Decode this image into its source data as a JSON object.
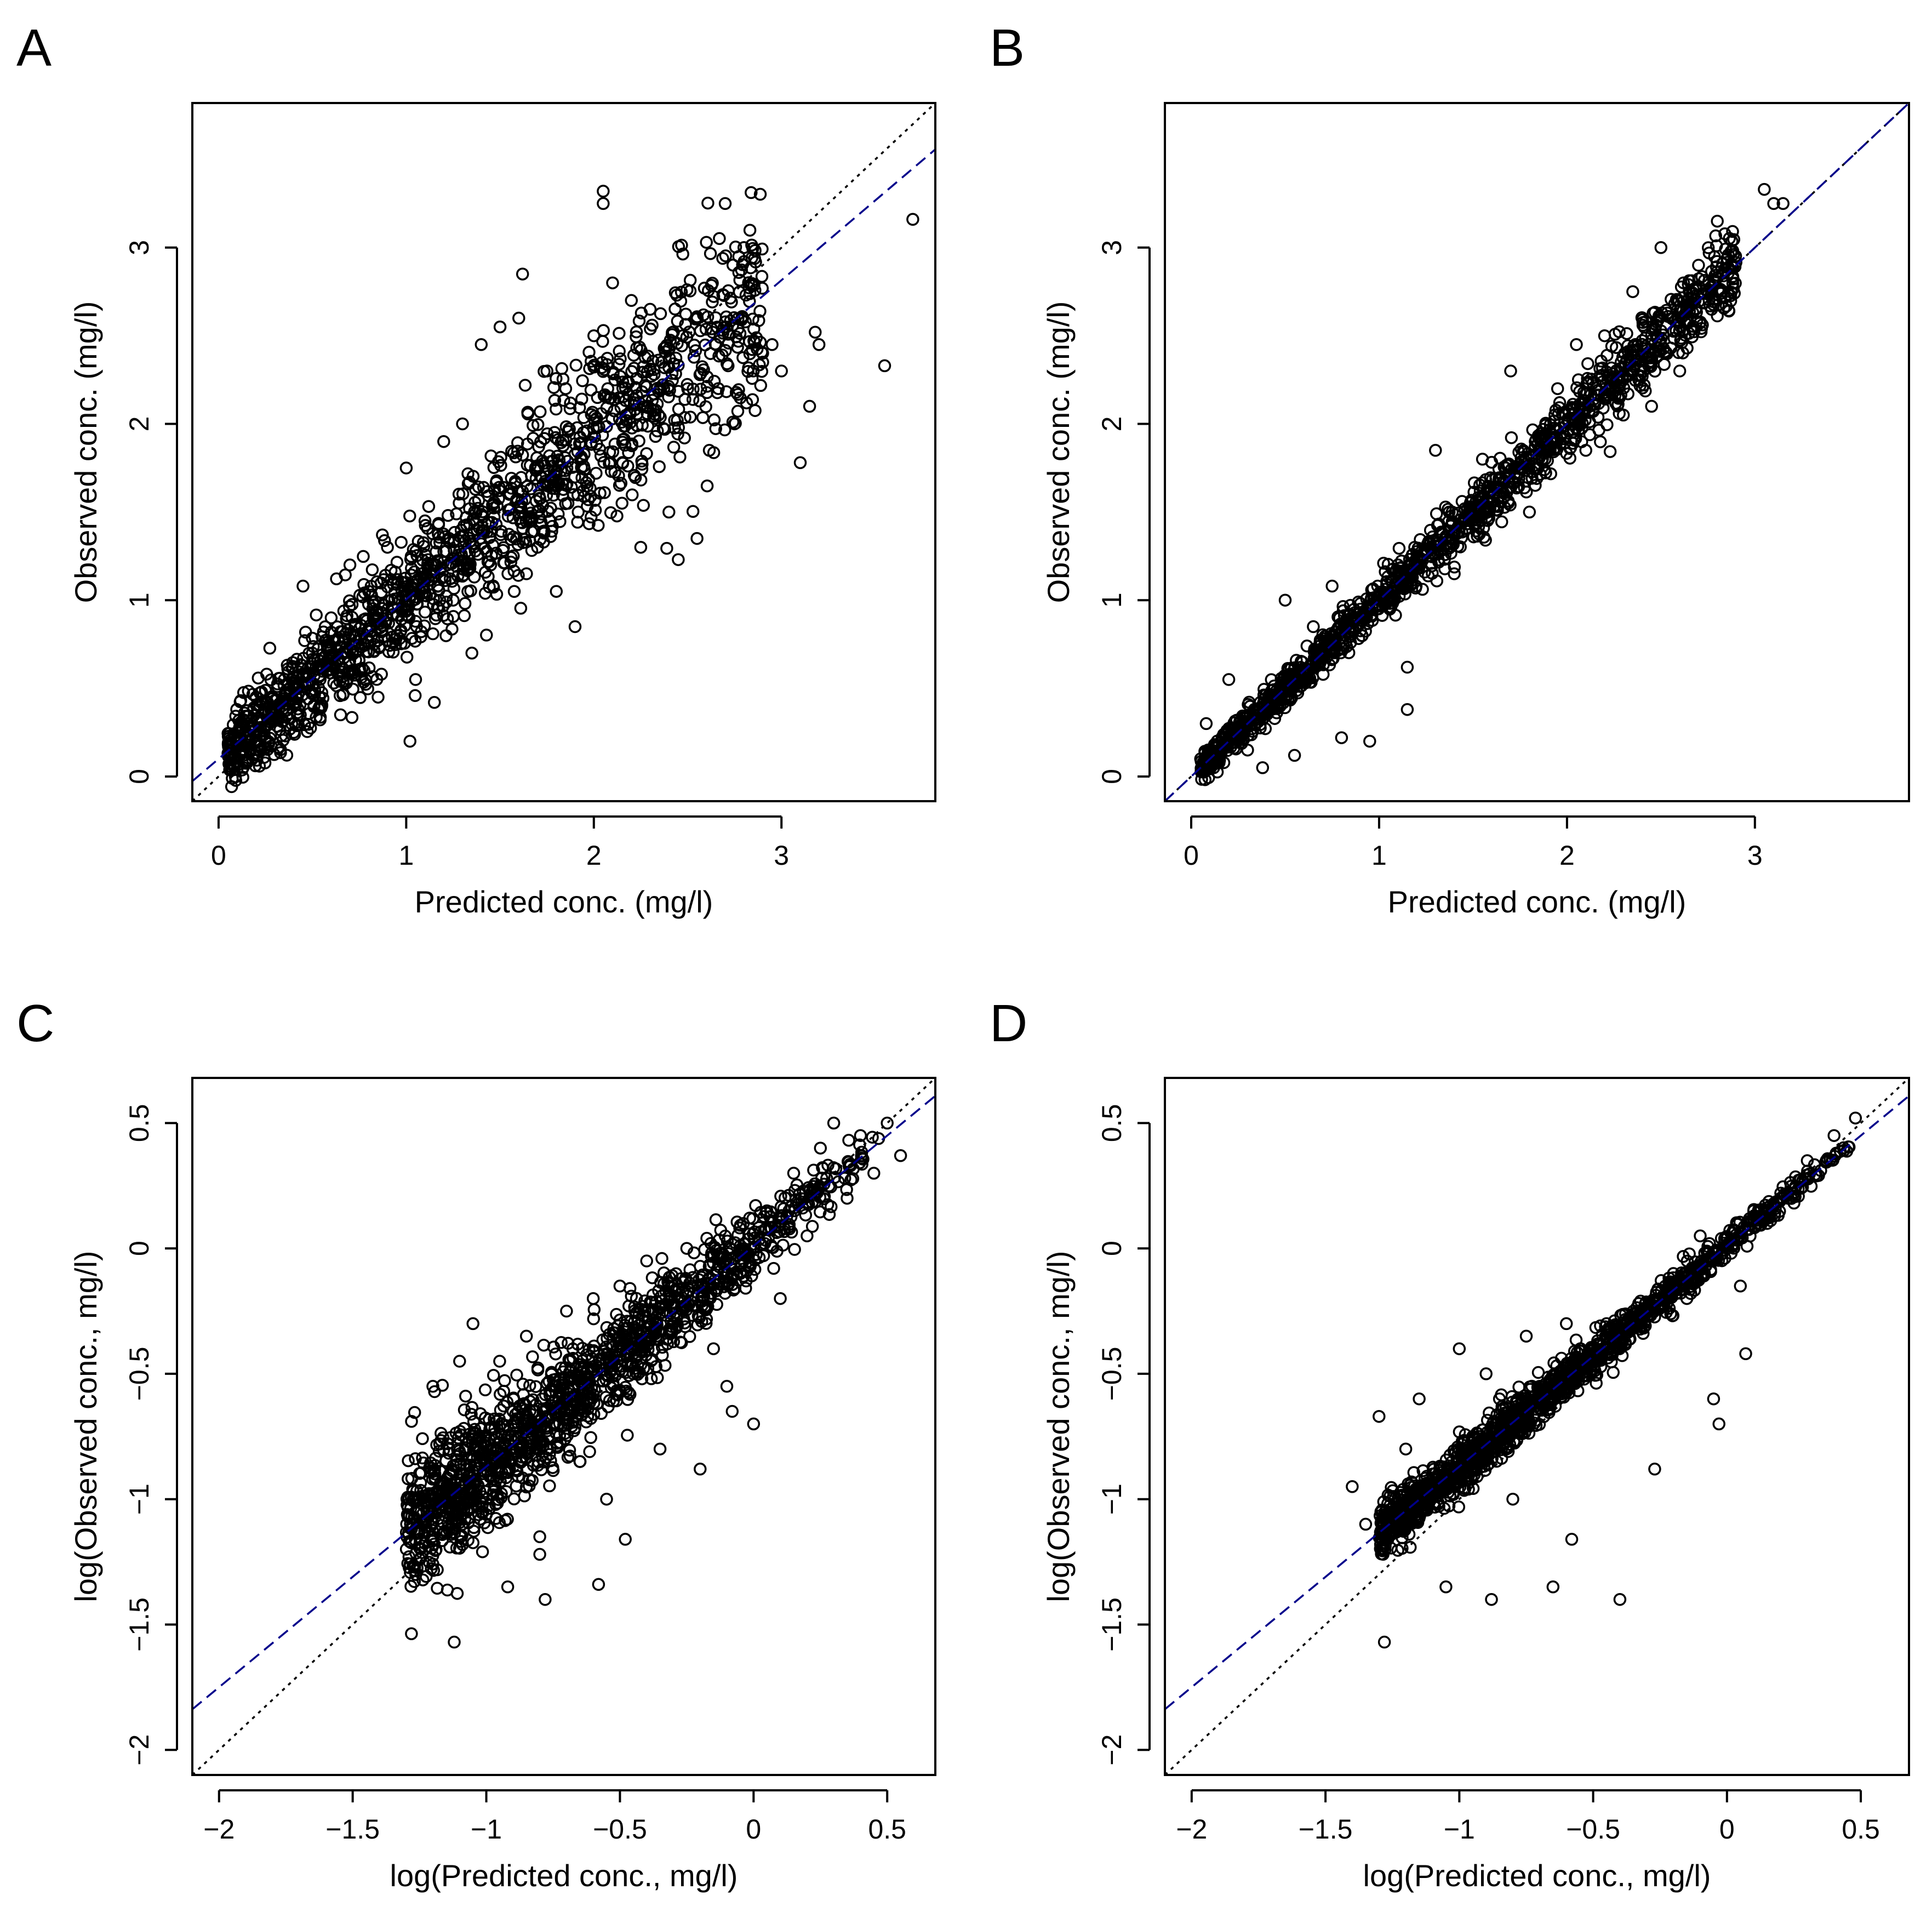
{
  "chart_data": [
    {
      "panel": "A",
      "type": "scatter",
      "xlabel": "Predicted conc. (mg/l)",
      "ylabel": "Observed conc. (mg/l)",
      "xlim": [
        -0.14,
        3.82
      ],
      "ylim": [
        -0.14,
        3.82
      ],
      "xticks": [
        0,
        1,
        2,
        3
      ],
      "yticks": [
        0,
        1,
        2,
        3
      ],
      "tick_labels": [
        "0",
        "1",
        "2",
        "3"
      ],
      "reference_line": {
        "style": "dotted",
        "color": "#000000",
        "slope": 1,
        "intercept": 0
      },
      "fit_line": {
        "style": "dashed",
        "color": "#00008B",
        "slope": 0.905,
        "intercept": 0.1
      },
      "point_spread": 0.19,
      "points": [
        [
          0.08,
          0.06
        ],
        [
          0.1,
          0.25
        ],
        [
          0.12,
          0.15
        ],
        [
          0.15,
          0.3
        ],
        [
          0.18,
          0.1
        ],
        [
          0.2,
          0.45
        ],
        [
          0.25,
          0.2
        ],
        [
          0.3,
          0.35
        ],
        [
          0.35,
          0.55
        ],
        [
          0.4,
          0.25
        ],
        [
          0.45,
          1.08
        ],
        [
          0.5,
          0.7
        ],
        [
          0.55,
          0.4
        ],
        [
          0.6,
          0.9
        ],
        [
          0.65,
          0.35
        ],
        [
          0.7,
          1.2
        ],
        [
          0.75,
          0.6
        ],
        [
          0.8,
          1.05
        ],
        [
          0.85,
          0.45
        ],
        [
          0.9,
          1.3
        ],
        [
          0.95,
          0.8
        ],
        [
          1.0,
          1.75
        ],
        [
          1.02,
          0.2
        ],
        [
          1.05,
          0.55
        ],
        [
          1.1,
          1.45
        ],
        [
          1.15,
          0.42
        ],
        [
          1.2,
          1.9
        ],
        [
          1.25,
          1.0
        ],
        [
          1.3,
          2.0
        ],
        [
          1.35,
          0.7
        ],
        [
          1.4,
          2.45
        ],
        [
          1.45,
          1.2
        ],
        [
          1.5,
          2.55
        ],
        [
          1.55,
          1.6
        ],
        [
          1.6,
          2.6
        ],
        [
          1.62,
          2.85
        ],
        [
          1.7,
          1.3
        ],
        [
          1.75,
          2.3
        ],
        [
          1.8,
          1.05
        ],
        [
          1.85,
          2.2
        ],
        [
          1.9,
          0.85
        ],
        [
          2.0,
          2.5
        ],
        [
          2.05,
          3.32
        ],
        [
          2.05,
          3.25
        ],
        [
          2.1,
          2.8
        ],
        [
          2.15,
          1.55
        ],
        [
          2.2,
          2.7
        ],
        [
          2.25,
          1.3
        ],
        [
          2.3,
          2.65
        ],
        [
          2.4,
          1.5
        ],
        [
          2.45,
          1.23
        ],
        [
          2.5,
          2.2
        ],
        [
          2.55,
          1.35
        ],
        [
          2.6,
          3.03
        ],
        [
          2.65,
          2.45
        ],
        [
          2.7,
          3.25
        ],
        [
          2.75,
          2.0
        ],
        [
          2.8,
          3.0
        ],
        [
          2.85,
          2.3
        ],
        [
          2.9,
          2.35
        ],
        [
          2.95,
          2.45
        ],
        [
          3.0,
          2.3
        ],
        [
          3.1,
          1.78
        ],
        [
          3.15,
          2.1
        ],
        [
          3.18,
          2.52
        ],
        [
          3.2,
          2.45
        ],
        [
          3.55,
          2.33
        ],
        [
          3.7,
          3.16
        ]
      ]
    },
    {
      "panel": "B",
      "type": "scatter",
      "xlabel": "Predicted conc. (mg/l)",
      "ylabel": "Observed conc. (mg/l)",
      "xlim": [
        -0.14,
        3.82
      ],
      "ylim": [
        -0.14,
        3.82
      ],
      "xticks": [
        0,
        1,
        2,
        3
      ],
      "yticks": [
        0,
        1,
        2,
        3
      ],
      "tick_labels": [
        "0",
        "1",
        "2",
        "3"
      ],
      "reference_line": {
        "style": "dotted",
        "color": "#000000",
        "slope": 1,
        "intercept": 0
      },
      "fit_line": {
        "style": "dashed",
        "color": "#00008B",
        "slope": 1.0,
        "intercept": 0.0
      },
      "point_spread": 0.07,
      "points": [
        [
          0.05,
          0.1
        ],
        [
          0.08,
          0.3
        ],
        [
          0.12,
          0.05
        ],
        [
          0.2,
          0.55
        ],
        [
          0.3,
          0.15
        ],
        [
          0.38,
          0.05
        ],
        [
          0.5,
          1.0
        ],
        [
          0.55,
          0.12
        ],
        [
          0.65,
          0.85
        ],
        [
          0.75,
          1.08
        ],
        [
          0.8,
          0.22
        ],
        [
          0.95,
          0.2
        ],
        [
          1.1,
          1.2
        ],
        [
          1.15,
          0.62
        ],
        [
          1.15,
          0.38
        ],
        [
          1.3,
          1.85
        ],
        [
          1.4,
          1.15
        ],
        [
          1.55,
          1.8
        ],
        [
          1.7,
          2.3
        ],
        [
          1.8,
          1.5
        ],
        [
          1.95,
          2.2
        ],
        [
          2.05,
          2.45
        ],
        [
          2.1,
          1.85
        ],
        [
          2.2,
          2.5
        ],
        [
          2.3,
          2.05
        ],
        [
          2.35,
          2.75
        ],
        [
          2.45,
          2.1
        ],
        [
          2.5,
          3.0
        ],
        [
          2.6,
          2.3
        ],
        [
          2.62,
          2.8
        ],
        [
          2.7,
          2.9
        ],
        [
          2.8,
          3.15
        ],
        [
          3.05,
          3.33
        ],
        [
          3.1,
          3.25
        ],
        [
          3.15,
          3.25
        ]
      ]
    },
    {
      "panel": "C",
      "type": "scatter",
      "xlabel": "log(Predicted conc., mg/l)",
      "ylabel": "log(Observed conc., mg/l)",
      "xlim": [
        -2.1,
        0.68
      ],
      "ylim": [
        -2.1,
        0.68
      ],
      "xticks": [
        -2,
        -1.5,
        -1,
        -0.5,
        0,
        0.5
      ],
      "yticks": [
        -2,
        -1.5,
        -1,
        -0.5,
        0,
        0.5
      ],
      "tick_labels": [
        "−2",
        "−1.5",
        "−1",
        "−0.5",
        "0",
        "0.5"
      ],
      "reference_line": {
        "style": "dotted",
        "color": "#000000",
        "slope": 1,
        "intercept": 0
      },
      "fit_line": {
        "style": "dashed",
        "color": "#00008B",
        "slope": 0.88,
        "intercept": 0.01
      },
      "point_spread": 0.12,
      "points": [
        [
          -1.28,
          -0.69
        ],
        [
          -1.2,
          -0.55
        ],
        [
          -1.12,
          -1.57
        ],
        [
          -1.1,
          -0.45
        ],
        [
          -1.05,
          -0.3
        ],
        [
          -1.05,
          -0.75
        ],
        [
          -1.0,
          -1.0
        ],
        [
          -0.95,
          -0.45
        ],
        [
          -0.92,
          -1.35
        ],
        [
          -0.9,
          -0.65
        ],
        [
          -0.85,
          -0.35
        ],
        [
          -0.8,
          -1.15
        ],
        [
          -0.8,
          -1.22
        ],
        [
          -0.78,
          -1.4
        ],
        [
          -0.75,
          -0.55
        ],
        [
          -0.7,
          -0.25
        ],
        [
          -0.65,
          -0.85
        ],
        [
          -0.6,
          -0.2
        ],
        [
          -0.58,
          -1.34
        ],
        [
          -0.55,
          -1.0
        ],
        [
          -0.5,
          -0.15
        ],
        [
          -0.48,
          -1.16
        ],
        [
          -0.45,
          -0.5
        ],
        [
          -0.4,
          -0.05
        ],
        [
          -0.35,
          -0.8
        ],
        [
          -0.3,
          -0.3
        ],
        [
          -0.25,
          0.0
        ],
        [
          -0.2,
          -0.88
        ],
        [
          -0.15,
          -0.4
        ],
        [
          -0.1,
          -0.55
        ],
        [
          -0.08,
          -0.65
        ],
        [
          -0.05,
          -0.1
        ],
        [
          0.0,
          -0.7
        ],
        [
          0.05,
          0.15
        ],
        [
          0.1,
          -0.2
        ],
        [
          0.15,
          0.3
        ],
        [
          0.2,
          0.05
        ],
        [
          0.25,
          0.4
        ],
        [
          0.3,
          0.5
        ],
        [
          0.35,
          0.2
        ],
        [
          0.4,
          0.45
        ],
        [
          0.45,
          0.3
        ],
        [
          0.5,
          0.5
        ],
        [
          0.55,
          0.37
        ]
      ]
    },
    {
      "panel": "D",
      "type": "scatter",
      "xlabel": "log(Predicted conc., mg/l)",
      "ylabel": "log(Observed conc., mg/l)",
      "xlim": [
        -2.1,
        0.68
      ],
      "ylim": [
        -2.1,
        0.68
      ],
      "xticks": [
        -2,
        -1.5,
        -1,
        -0.5,
        0,
        0.5
      ],
      "yticks": [
        -2,
        -1.5,
        -1,
        -0.5,
        0,
        0.5
      ],
      "tick_labels": [
        "−2",
        "−1.5",
        "−1",
        "−0.5",
        "0",
        "0.5"
      ],
      "reference_line": {
        "style": "dotted",
        "color": "#000000",
        "slope": 1,
        "intercept": 0
      },
      "fit_line": {
        "style": "dashed",
        "color": "#00008B",
        "slope": 0.88,
        "intercept": 0.01
      },
      "point_spread": 0.05,
      "points": [
        [
          -1.4,
          -0.95
        ],
        [
          -1.35,
          -1.1
        ],
        [
          -1.3,
          -0.67
        ],
        [
          -1.28,
          -1.57
        ],
        [
          -1.2,
          -0.8
        ],
        [
          -1.15,
          -0.6
        ],
        [
          -1.1,
          -0.9
        ],
        [
          -1.05,
          -1.35
        ],
        [
          -1.0,
          -0.4
        ],
        [
          -0.95,
          -0.75
        ],
        [
          -0.9,
          -0.5
        ],
        [
          -0.88,
          -1.4
        ],
        [
          -0.85,
          -0.6
        ],
        [
          -0.8,
          -1.0
        ],
        [
          -0.75,
          -0.35
        ],
        [
          -0.7,
          -0.55
        ],
        [
          -0.65,
          -1.35
        ],
        [
          -0.6,
          -0.3
        ],
        [
          -0.58,
          -1.16
        ],
        [
          -0.55,
          -0.45
        ],
        [
          -0.45,
          -0.3
        ],
        [
          -0.4,
          -1.4
        ],
        [
          -0.35,
          -0.25
        ],
        [
          -0.27,
          -0.88
        ],
        [
          -0.25,
          -0.2
        ],
        [
          -0.2,
          -0.1
        ],
        [
          -0.15,
          -0.2
        ],
        [
          -0.1,
          0.05
        ],
        [
          -0.05,
          -0.6
        ],
        [
          -0.03,
          -0.7
        ],
        [
          0.0,
          0.0
        ],
        [
          0.05,
          -0.15
        ],
        [
          0.07,
          -0.42
        ],
        [
          0.1,
          0.15
        ],
        [
          0.2,
          0.2
        ],
        [
          0.3,
          0.35
        ],
        [
          0.4,
          0.45
        ],
        [
          0.48,
          0.52
        ]
      ]
    }
  ]
}
